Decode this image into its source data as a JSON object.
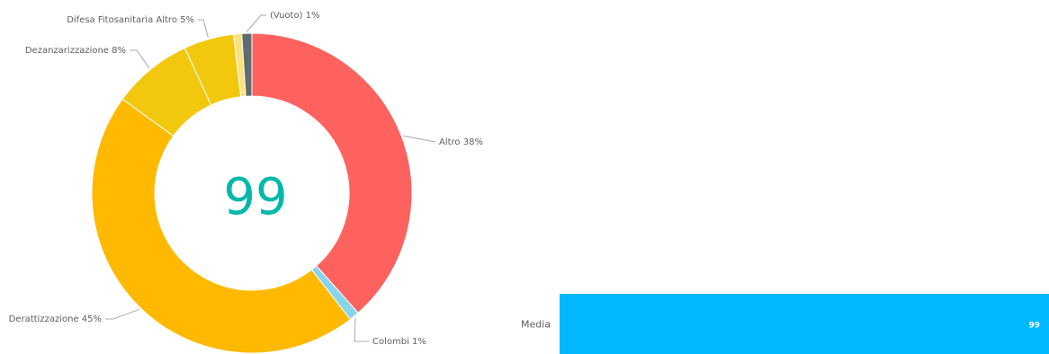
{
  "chart_data": [
    {
      "type": "pie",
      "variant": "donut",
      "center_value": "99",
      "slices": [
        {
          "label": "Altro 38%",
          "value": 38,
          "color": "#fd625e"
        },
        {
          "label": "Colombi 1%",
          "value": 1,
          "color": "#8ad4eb"
        },
        {
          "label": "Derattizzazione 45%",
          "value": 45,
          "color": "#ffb900"
        },
        {
          "label": "Dezanzarizzazione 8%",
          "value": 8,
          "color": "#f2c80f"
        },
        {
          "label": "Difesa Fitosanitaria Altro 5%",
          "value": 5,
          "color": "#f2c80f"
        },
        {
          "label": "",
          "value": 0.8,
          "color": "#fbe27a"
        },
        {
          "label": "(Vuoto) 1%",
          "value": 1,
          "color": "#5f6b6d"
        }
      ]
    },
    {
      "type": "bar",
      "orientation": "horizontal",
      "categories": [
        "Media"
      ],
      "values": [
        99
      ],
      "data_labels": [
        "99"
      ],
      "color": "#01b8ff"
    }
  ]
}
